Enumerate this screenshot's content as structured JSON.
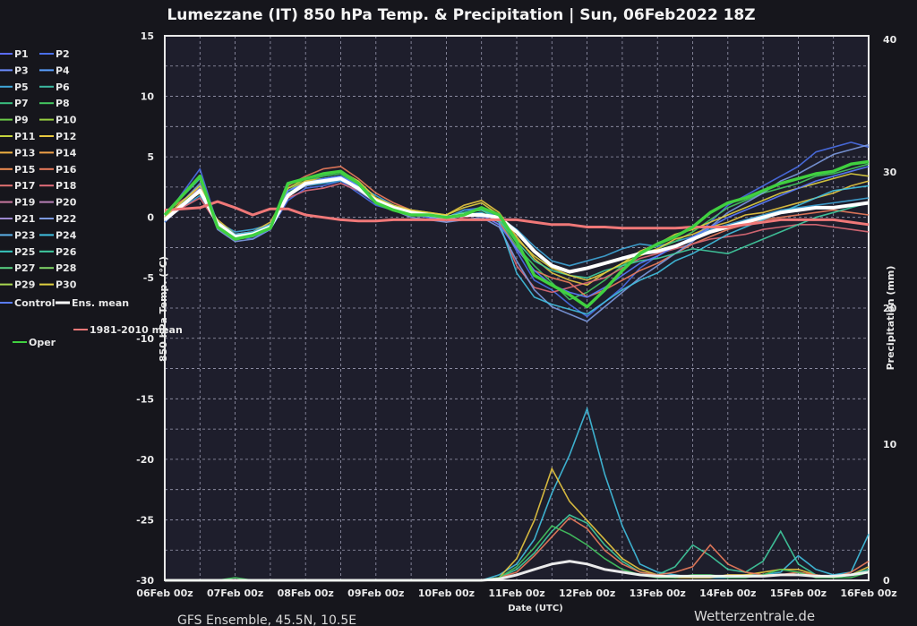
{
  "chart_data": {
    "type": "line",
    "title": "Lumezzane  (IT)  850 hPa Temp. & Precipitation | Sun, 06Feb2022 18Z",
    "subtitle": "GFS Ensemble, 45.5N, 10.5E",
    "source": "Wetterzentrale.de",
    "xlabel": "Date (UTC)",
    "ylabel": "850 hPa Temp. (°C)",
    "y2label": "Precipitation (mm)",
    "ylim": [
      -30,
      15
    ],
    "y2lim": [
      0,
      40
    ],
    "grid": true,
    "legend_placement": "left",
    "x_ticks": [
      "06Feb 00z",
      "07Feb 00z",
      "08Feb 00z",
      "09Feb 00z",
      "10Feb 00z",
      "11Feb 00z",
      "12Feb 00z",
      "13Feb 00z",
      "14Feb 00z",
      "15Feb 00z",
      "16Feb 00z"
    ],
    "y_ticks": [
      15,
      10,
      5,
      0,
      -5,
      -10,
      -15,
      -20,
      -25,
      -30
    ],
    "y2_ticks": [
      40,
      30,
      20,
      10,
      0
    ],
    "x_hours": [
      0,
      12,
      18,
      24,
      30,
      36,
      42,
      48,
      54,
      60,
      66,
      72,
      78,
      84,
      90,
      96,
      102,
      108,
      114,
      120,
      126,
      132,
      138,
      144,
      150,
      156,
      162,
      168,
      174,
      180,
      186,
      192,
      198,
      204,
      210,
      216,
      222,
      228,
      234,
      240
    ],
    "legend": [
      {
        "label": "P1",
        "color": "#5b6cff"
      },
      {
        "label": "P2",
        "color": "#4a6fe8"
      },
      {
        "label": "P3",
        "color": "#6c8cff"
      },
      {
        "label": "P4",
        "color": "#5aa0ff"
      },
      {
        "label": "P5",
        "color": "#3fa6d8"
      },
      {
        "label": "P6",
        "color": "#3cb8a0"
      },
      {
        "label": "P7",
        "color": "#3ac080"
      },
      {
        "label": "P8",
        "color": "#44c860"
      },
      {
        "label": "P9",
        "color": "#6ccc48"
      },
      {
        "label": "P10",
        "color": "#98d040"
      },
      {
        "label": "P11",
        "color": "#c4d43c"
      },
      {
        "label": "P12",
        "color": "#e8c840"
      },
      {
        "label": "P13",
        "color": "#f0b040"
      },
      {
        "label": "P14",
        "color": "#f0a048"
      },
      {
        "label": "P15",
        "color": "#f08c50"
      },
      {
        "label": "P16",
        "color": "#ec7c5c"
      },
      {
        "label": "P17",
        "color": "#e07070"
      },
      {
        "label": "P18",
        "color": "#e06c78"
      },
      {
        "label": "P19",
        "color": "#c878a0"
      },
      {
        "label": "P20",
        "color": "#b880b8"
      },
      {
        "label": "P21",
        "color": "#9c88d0"
      },
      {
        "label": "P22",
        "color": "#7c9ae0"
      },
      {
        "label": "P23",
        "color": "#5cb0e8"
      },
      {
        "label": "P24",
        "color": "#40c0e0"
      },
      {
        "label": "P25",
        "color": "#38c8c0"
      },
      {
        "label": "P26",
        "color": "#40cca0"
      },
      {
        "label": "P27",
        "color": "#58d080"
      },
      {
        "label": "P28",
        "color": "#80d468"
      },
      {
        "label": "P29",
        "color": "#a8d850"
      },
      {
        "label": "P30",
        "color": "#e0d040"
      },
      {
        "label": "Control",
        "color": "#5a7cff"
      },
      {
        "label": "Ens. mean",
        "color": "#ffffff"
      },
      {
        "label": "Oper",
        "color": "#40d040"
      },
      {
        "label": "1981-2010 mean",
        "color": "#f07878"
      }
    ],
    "series": [
      {
        "name": "Ens. mean",
        "values": [
          -0.2,
          2.2,
          -0.5,
          -1.6,
          -1.4,
          -0.8,
          1.8,
          2.8,
          3.0,
          3.2,
          2.4,
          1.4,
          0.8,
          0.4,
          0.2,
          0.0,
          0.2,
          0.2,
          0.0,
          -1.2,
          -2.8,
          -4.0,
          -4.5,
          -4.2,
          -3.8,
          -3.4,
          -3.0,
          -2.8,
          -2.4,
          -1.8,
          -1.2,
          -0.8,
          -0.4,
          0.0,
          0.4,
          0.6,
          0.8,
          0.8,
          1.0,
          1.2
        ]
      },
      {
        "name": "1981-2010 mean",
        "values": [
          0.6,
          0.8,
          1.3,
          0.8,
          0.2,
          0.7,
          0.7,
          0.2,
          0.0,
          -0.2,
          -0.3,
          -0.3,
          -0.2,
          -0.2,
          -0.2,
          -0.2,
          -0.2,
          -0.2,
          -0.2,
          -0.2,
          -0.4,
          -0.6,
          -0.6,
          -0.8,
          -0.8,
          -0.9,
          -0.9,
          -0.9,
          -0.9,
          -0.8,
          -0.8,
          -0.8,
          -0.6,
          -0.4,
          -0.2,
          -0.2,
          -0.2,
          -0.2,
          -0.4,
          -0.6
        ]
      },
      {
        "name": "Oper",
        "values": [
          0.2,
          3.4,
          -0.8,
          -1.8,
          -1.5,
          -0.9,
          2.8,
          3.2,
          3.6,
          3.8,
          2.8,
          1.2,
          0.6,
          0.2,
          0.2,
          0.0,
          0.2,
          0.8,
          0.2,
          -2.0,
          -4.8,
          -5.6,
          -6.4,
          -7.4,
          -6.0,
          -4.4,
          -3.0,
          -2.2,
          -1.6,
          -0.8,
          0.4,
          1.2,
          1.6,
          2.2,
          2.8,
          3.2,
          3.6,
          3.8,
          4.4,
          4.6
        ]
      },
      {
        "name": "P2",
        "values": [
          0.0,
          4.0,
          -0.6,
          -1.6,
          -1.8,
          -1.0,
          1.4,
          2.4,
          2.6,
          3.0,
          2.0,
          1.0,
          0.6,
          0.2,
          0.0,
          -0.2,
          0.6,
          0.8,
          -0.2,
          -2.8,
          -5.2,
          -6.0,
          -7.2,
          -8.2,
          -7.0,
          -5.8,
          -4.2,
          -3.2,
          -2.4,
          -1.8,
          -0.4,
          1.0,
          1.8,
          2.6,
          3.4,
          4.2,
          5.4,
          5.8,
          6.2,
          5.8
        ]
      },
      {
        "name": "P5",
        "values": [
          -0.2,
          1.8,
          -0.4,
          -1.2,
          -1.0,
          -0.6,
          2.0,
          2.6,
          2.8,
          3.0,
          2.6,
          1.8,
          1.0,
          0.4,
          0.2,
          0.0,
          0.6,
          0.6,
          0.0,
          -1.0,
          -2.4,
          -3.6,
          -4.0,
          -3.6,
          -3.2,
          -2.6,
          -2.2,
          -2.4,
          -2.0,
          -1.6,
          -1.0,
          -0.6,
          -0.2,
          0.2,
          0.6,
          0.8,
          1.0,
          1.2,
          1.4,
          1.6
        ]
      },
      {
        "name": "P8",
        "values": [
          -0.4,
          2.6,
          -0.8,
          -1.8,
          -1.6,
          -0.8,
          2.4,
          3.0,
          3.4,
          3.6,
          2.6,
          1.4,
          0.8,
          0.4,
          0.2,
          0.0,
          0.4,
          0.6,
          -0.2,
          -2.4,
          -4.0,
          -5.4,
          -6.8,
          -6.2,
          -5.2,
          -4.0,
          -3.0,
          -2.6,
          -2.0,
          -1.2,
          -0.2,
          0.8,
          1.4,
          2.0,
          2.4,
          2.8,
          3.4,
          3.6,
          4.0,
          4.4
        ]
      },
      {
        "name": "P12",
        "values": [
          0.2,
          2.0,
          -0.2,
          -1.4,
          -1.2,
          -0.4,
          2.2,
          3.0,
          3.2,
          3.4,
          2.4,
          1.6,
          0.8,
          0.6,
          0.4,
          0.2,
          1.0,
          1.4,
          0.4,
          -1.6,
          -3.4,
          -4.6,
          -5.2,
          -5.6,
          -4.6,
          -3.8,
          -3.2,
          -2.6,
          -1.8,
          -1.4,
          -0.8,
          -0.4,
          0.2,
          0.4,
          0.8,
          1.2,
          1.6,
          2.0,
          2.6,
          3.0
        ]
      },
      {
        "name": "P16",
        "values": [
          0.4,
          2.4,
          -0.6,
          -1.6,
          -1.4,
          -0.8,
          2.6,
          3.4,
          4.0,
          4.2,
          3.2,
          2.0,
          1.2,
          0.6,
          0.2,
          -0.2,
          0.2,
          0.4,
          -0.4,
          -2.6,
          -4.4,
          -5.0,
          -5.4,
          -6.6,
          -6.0,
          -5.2,
          -4.4,
          -3.8,
          -3.0,
          -2.2,
          -1.6,
          -1.0,
          -0.6,
          -0.2,
          0.0,
          0.2,
          0.4,
          0.6,
          0.4,
          0.2
        ]
      },
      {
        "name": "P18",
        "values": [
          0.0,
          1.6,
          -0.6,
          -1.4,
          -1.2,
          -0.6,
          1.6,
          2.2,
          2.4,
          2.8,
          2.2,
          1.2,
          0.6,
          0.2,
          0.0,
          -0.4,
          0.0,
          0.2,
          -0.6,
          -4.0,
          -5.8,
          -6.2,
          -5.8,
          -5.4,
          -5.0,
          -4.2,
          -3.4,
          -3.0,
          -2.6,
          -2.2,
          -1.8,
          -1.6,
          -1.4,
          -1.0,
          -0.8,
          -0.6,
          -0.6,
          -0.8,
          -1.0,
          -1.2
        ]
      },
      {
        "name": "P22",
        "values": [
          -0.2,
          2.8,
          -1.0,
          -2.0,
          -1.8,
          -1.0,
          1.8,
          2.6,
          3.0,
          3.2,
          2.2,
          1.2,
          0.6,
          0.0,
          -0.2,
          -0.4,
          -0.2,
          0.0,
          -0.8,
          -3.6,
          -6.0,
          -7.4,
          -8.0,
          -8.6,
          -7.4,
          -6.2,
          -5.0,
          -4.0,
          -3.0,
          -2.0,
          -0.8,
          0.4,
          1.2,
          2.0,
          3.0,
          3.6,
          4.4,
          5.2,
          5.6,
          6.0
        ]
      },
      {
        "name": "P24",
        "values": [
          0.2,
          3.2,
          -0.4,
          -1.4,
          -1.2,
          -0.6,
          2.2,
          2.8,
          3.2,
          3.4,
          2.6,
          1.4,
          0.8,
          0.4,
          0.0,
          -0.2,
          0.2,
          0.4,
          -0.4,
          -4.6,
          -6.6,
          -7.2,
          -7.6,
          -8.0,
          -7.0,
          -6.0,
          -5.2,
          -4.6,
          -3.6,
          -3.0,
          -2.2,
          -1.4,
          -0.8,
          -0.2,
          0.4,
          1.0,
          1.6,
          2.2,
          2.4,
          2.6
        ]
      },
      {
        "name": "P26",
        "values": [
          -0.2,
          2.2,
          -0.8,
          -1.6,
          -1.4,
          -0.8,
          2.0,
          2.8,
          3.0,
          3.2,
          2.4,
          1.4,
          0.8,
          0.4,
          0.2,
          0.0,
          0.4,
          0.6,
          -0.2,
          -2.0,
          -3.6,
          -4.4,
          -4.8,
          -5.0,
          -4.4,
          -4.0,
          -3.6,
          -3.4,
          -3.0,
          -2.6,
          -2.8,
          -3.0,
          -2.4,
          -1.8,
          -1.2,
          -0.6,
          0.0,
          0.4,
          0.8,
          1.2
        ]
      },
      {
        "name": "P30",
        "values": [
          0.0,
          2.6,
          -0.6,
          -1.6,
          -1.6,
          -0.8,
          2.4,
          3.2,
          3.6,
          3.8,
          3.0,
          1.6,
          1.0,
          0.6,
          0.4,
          0.2,
          0.8,
          1.2,
          0.2,
          -1.8,
          -3.2,
          -4.2,
          -4.8,
          -5.2,
          -4.6,
          -3.8,
          -2.8,
          -2.2,
          -1.4,
          -1.0,
          -0.4,
          0.2,
          0.8,
          1.4,
          2.0,
          2.4,
          2.8,
          3.2,
          3.6,
          3.4
        ]
      },
      {
        "name": "Control",
        "values": [
          -0.4,
          2.4,
          -0.8,
          -1.8,
          -1.6,
          -1.0,
          2.2,
          2.8,
          3.2,
          3.4,
          2.6,
          1.4,
          0.8,
          0.2,
          0.0,
          -0.2,
          0.2,
          0.2,
          -0.6,
          -2.6,
          -4.4,
          -5.6,
          -6.2,
          -6.6,
          -5.8,
          -4.8,
          -3.8,
          -3.2,
          -2.4,
          -1.6,
          -0.8,
          0.0,
          0.6,
          1.2,
          1.8,
          2.4,
          3.0,
          3.4,
          3.8,
          4.2
        ]
      }
    ],
    "precip_series": [
      {
        "name": "P24",
        "values": [
          0,
          0,
          0,
          0,
          0,
          0,
          0,
          0,
          0,
          0,
          0,
          0,
          0,
          0,
          0,
          0,
          0,
          0,
          0.4,
          1.2,
          3.0,
          6.4,
          9.2,
          12.6,
          7.8,
          4.0,
          1.2,
          0.6,
          0.4,
          0.2,
          0.2,
          0.2,
          0.4,
          0.4,
          0.6,
          1.8,
          0.8,
          0.4,
          0.6,
          3.4
        ]
      },
      {
        "name": "P12",
        "values": [
          0,
          0,
          0,
          0,
          0,
          0,
          0,
          0,
          0,
          0,
          0,
          0,
          0,
          0,
          0,
          0,
          0,
          0,
          0.2,
          1.6,
          4.4,
          8.2,
          5.8,
          4.4,
          3.0,
          1.6,
          0.8,
          0.4,
          0.2,
          0.2,
          0.2,
          0.4,
          0.4,
          0.6,
          0.8,
          0.8,
          0.4,
          0.2,
          0.4,
          1.0
        ]
      },
      {
        "name": "P26",
        "values": [
          0,
          0,
          0,
          0,
          0,
          0,
          0,
          0,
          0,
          0,
          0,
          0,
          0,
          0,
          0,
          0,
          0,
          0,
          0.2,
          0.8,
          2.0,
          3.6,
          4.8,
          4.2,
          2.6,
          1.4,
          0.6,
          0.4,
          1.0,
          2.6,
          1.8,
          0.8,
          0.6,
          1.4,
          3.6,
          1.2,
          0.4,
          0.2,
          0.4,
          0.8
        ]
      },
      {
        "name": "P16",
        "values": [
          0,
          0,
          0,
          0,
          0,
          0,
          0,
          0,
          0,
          0,
          0,
          0,
          0,
          0,
          0,
          0,
          0,
          0,
          0.2,
          0.6,
          1.8,
          3.2,
          4.6,
          3.8,
          2.2,
          1.2,
          0.6,
          0.4,
          0.6,
          1.0,
          2.6,
          1.2,
          0.6,
          0.4,
          0.4,
          0.6,
          0.4,
          0.2,
          0.6,
          1.4
        ]
      },
      {
        "name": "P8",
        "values": [
          0,
          0,
          0,
          0.2,
          0,
          0,
          0,
          0,
          0,
          0,
          0,
          0,
          0,
          0,
          0,
          0,
          0,
          0,
          0.2,
          1.0,
          2.4,
          4.0,
          3.4,
          2.6,
          1.6,
          0.8,
          0.4,
          0.2,
          0.2,
          0.4,
          0.4,
          0.2,
          0.2,
          0.4,
          0.8,
          0.6,
          0.2,
          0.2,
          0.2,
          0.6
        ]
      },
      {
        "name": "Ens. mean",
        "values": [
          0,
          0,
          0,
          0,
          0,
          0,
          0,
          0,
          0,
          0,
          0,
          0,
          0,
          0,
          0,
          0,
          0,
          0,
          0.1,
          0.4,
          0.8,
          1.2,
          1.4,
          1.2,
          0.8,
          0.6,
          0.4,
          0.3,
          0.3,
          0.3,
          0.3,
          0.3,
          0.3,
          0.3,
          0.4,
          0.4,
          0.3,
          0.3,
          0.4,
          0.6
        ]
      }
    ]
  }
}
